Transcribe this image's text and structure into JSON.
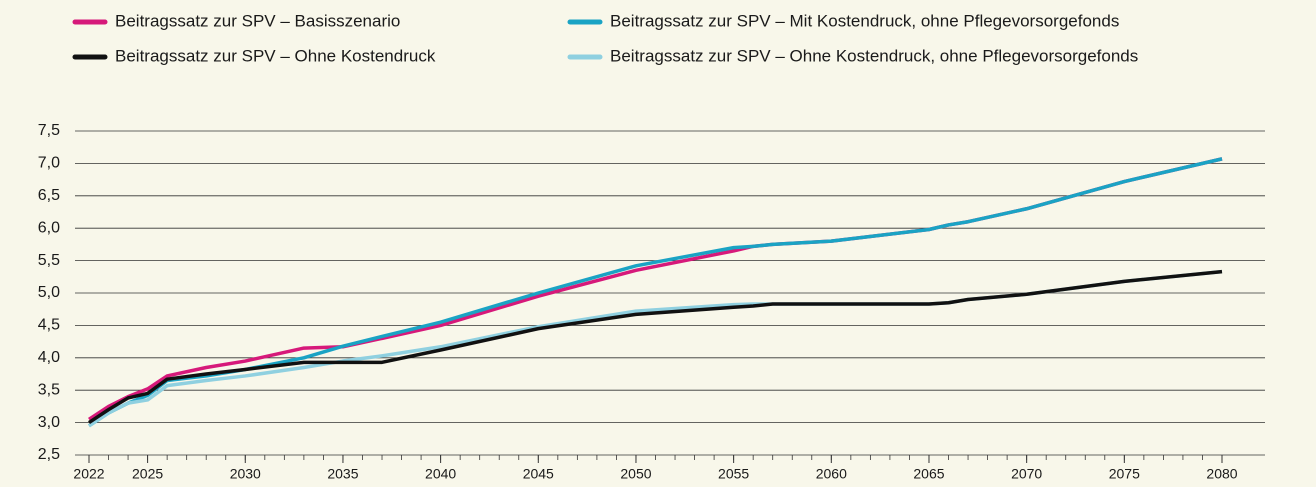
{
  "chart_data": {
    "type": "line",
    "x": [
      2022,
      2023,
      2024,
      2025,
      2026,
      2028,
      2030,
      2033,
      2035,
      2037,
      2040,
      2045,
      2050,
      2055,
      2056,
      2057,
      2060,
      2065,
      2066,
      2067,
      2070,
      2075,
      2080
    ],
    "series": [
      {
        "name": "Beitragssatz zur SPV – Basisszenario",
        "color": "#d6197a",
        "values": [
          3.05,
          3.25,
          3.4,
          3.52,
          3.72,
          3.85,
          3.95,
          4.15,
          4.17,
          4.3,
          4.5,
          4.95,
          5.35,
          5.65,
          5.72,
          5.75,
          5.8,
          5.98,
          6.05,
          6.1,
          6.3,
          6.72,
          7.07
        ]
      },
      {
        "name": "Beitragssatz zur SPV – Mit Kostendruck, ohne Pflegevorsorgefonds",
        "color": "#1aa3c4",
        "values": [
          2.95,
          3.15,
          3.3,
          3.42,
          3.65,
          3.72,
          3.82,
          4.0,
          4.18,
          4.33,
          4.55,
          5.0,
          5.42,
          5.7,
          5.72,
          5.75,
          5.8,
          5.98,
          6.05,
          6.1,
          6.3,
          6.72,
          7.07
        ]
      },
      {
        "name": "Beitragssatz zur SPV – Ohne Kostendruck",
        "color": "#111111",
        "values": [
          3.0,
          3.2,
          3.38,
          3.45,
          3.67,
          3.75,
          3.82,
          3.93,
          3.93,
          3.93,
          4.12,
          4.45,
          4.67,
          4.78,
          4.8,
          4.83,
          4.83,
          4.83,
          4.85,
          4.9,
          4.98,
          5.18,
          5.33
        ]
      },
      {
        "name": "Beitragssatz zur SPV – Ohne Kostendruck, ohne Pflegevorsorgefonds",
        "color": "#8fd0e0",
        "values": [
          2.95,
          3.15,
          3.3,
          3.35,
          3.57,
          3.65,
          3.72,
          3.85,
          3.95,
          4.03,
          4.17,
          4.48,
          4.72,
          4.82,
          4.83,
          4.83,
          4.83,
          4.83,
          4.85,
          4.9,
          4.98,
          5.18,
          5.33
        ]
      }
    ],
    "xlim": [
      2022,
      2080
    ],
    "xticks": [
      2022,
      2025,
      2030,
      2035,
      2040,
      2045,
      2050,
      2055,
      2060,
      2065,
      2070,
      2075,
      2080
    ],
    "ylim": [
      2.5,
      7.5
    ],
    "yticks": [
      {
        "value": 2.5,
        "label": "2,5"
      },
      {
        "value": 3.0,
        "label": "3,0"
      },
      {
        "value": 3.5,
        "label": "3,5"
      },
      {
        "value": 4.0,
        "label": "4,0"
      },
      {
        "value": 4.5,
        "label": "4,5"
      },
      {
        "value": 5.0,
        "label": "5,0"
      },
      {
        "value": 5.5,
        "label": "5,5"
      },
      {
        "value": 6.0,
        "label": "6,0"
      },
      {
        "value": 6.5,
        "label": "6,5"
      },
      {
        "value": 7.0,
        "label": "7,0"
      },
      {
        "value": 7.5,
        "label": "7,5"
      }
    ],
    "grid": true,
    "legend": "top"
  }
}
